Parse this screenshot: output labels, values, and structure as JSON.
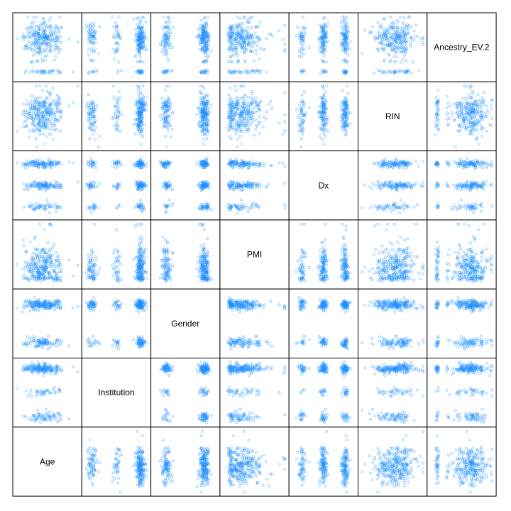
{
  "chart_data": {
    "type": "scatter",
    "variables": [
      "Age",
      "Institution",
      "Gender",
      "PMI",
      "Dx",
      "RIN",
      "Ancestry_EV.2"
    ],
    "layout": "lower-left-to-upper-right diagonal",
    "colors": {
      "point": "#1E90FF",
      "frame": "#000000",
      "background": "#FFFFFF"
    },
    "panels": [
      {
        "row_var": "Ancestry_EV.2",
        "col_var": "Age",
        "pattern": "three horizontal bands (upper dense, middle dense, lower sparse)"
      },
      {
        "row_var": "Ancestry_EV.2",
        "col_var": "Institution",
        "pattern": "three vertical columns with four point groups"
      },
      {
        "row_var": "Ancestry_EV.2",
        "col_var": "Gender",
        "pattern": "two vertical columns"
      },
      {
        "row_var": "Ancestry_EV.2",
        "col_var": "PMI",
        "pattern": "three horizontal bands, skewed left"
      },
      {
        "row_var": "Ancestry_EV.2",
        "col_var": "Dx",
        "pattern": "three vertical columns"
      },
      {
        "row_var": "Ancestry_EV.2",
        "col_var": "RIN",
        "pattern": "three horizontal bands, broad"
      },
      {
        "row_var": "RIN",
        "col_var": "Age",
        "pattern": "diffuse cloud"
      },
      {
        "row_var": "RIN",
        "col_var": "Institution",
        "pattern": "three vertical columns"
      },
      {
        "row_var": "RIN",
        "col_var": "Gender",
        "pattern": "two vertical columns"
      },
      {
        "row_var": "RIN",
        "col_var": "PMI",
        "pattern": "diffuse cloud, skewed left"
      },
      {
        "row_var": "RIN",
        "col_var": "Dx",
        "pattern": "three vertical columns"
      },
      {
        "row_var": "RIN",
        "col_var": "Ancestry_EV.2",
        "pattern": "vertical bands"
      },
      {
        "row_var": "Dx",
        "col_var": "Age",
        "pattern": "three horizontal bands"
      },
      {
        "row_var": "Dx",
        "col_var": "Institution",
        "pattern": "3x3 grid of clusters"
      },
      {
        "row_var": "Dx",
        "col_var": "Gender",
        "pattern": "2x3 grid of clusters"
      },
      {
        "row_var": "Dx",
        "col_var": "PMI",
        "pattern": "three horizontal bands, skewed left"
      },
      {
        "row_var": "Dx",
        "col_var": "RIN",
        "pattern": "three horizontal bands"
      },
      {
        "row_var": "Dx",
        "col_var": "Ancestry_EV.2",
        "pattern": "three horizontal bands with gaps"
      },
      {
        "row_var": "PMI",
        "col_var": "Age",
        "pattern": "diffuse cloud"
      },
      {
        "row_var": "PMI",
        "col_var": "Institution",
        "pattern": "three vertical columns"
      },
      {
        "row_var": "PMI",
        "col_var": "Gender",
        "pattern": "two vertical columns"
      },
      {
        "row_var": "PMI",
        "col_var": "Dx",
        "pattern": "three vertical columns"
      },
      {
        "row_var": "PMI",
        "col_var": "RIN",
        "pattern": "diffuse cloud"
      },
      {
        "row_var": "PMI",
        "col_var": "Ancestry_EV.2",
        "pattern": "vertical bands"
      },
      {
        "row_var": "Gender",
        "col_var": "Age",
        "pattern": "two horizontal bands"
      },
      {
        "row_var": "Gender",
        "col_var": "Institution",
        "pattern": "2x3 grid of clusters"
      },
      {
        "row_var": "Gender",
        "col_var": "PMI",
        "pattern": "two horizontal bands, skewed left"
      },
      {
        "row_var": "Gender",
        "col_var": "Dx",
        "pattern": "2x3 grid of clusters"
      },
      {
        "row_var": "Gender",
        "col_var": "RIN",
        "pattern": "two horizontal bands"
      },
      {
        "row_var": "Gender",
        "col_var": "Ancestry_EV.2",
        "pattern": "two horizontal bands with gaps"
      },
      {
        "row_var": "Institution",
        "col_var": "Age",
        "pattern": "three horizontal bands (age shifts by institution)"
      },
      {
        "row_var": "Institution",
        "col_var": "Gender",
        "pattern": "3x2 grid of clusters"
      },
      {
        "row_var": "Institution",
        "col_var": "PMI",
        "pattern": "three horizontal bands, skewed left"
      },
      {
        "row_var": "Institution",
        "col_var": "Dx",
        "pattern": "3x3 grid of clusters"
      },
      {
        "row_var": "Institution",
        "col_var": "RIN",
        "pattern": "three horizontal bands"
      },
      {
        "row_var": "Institution",
        "col_var": "Ancestry_EV.2",
        "pattern": "three horizontal bands with gaps"
      },
      {
        "row_var": "Age",
        "col_var": "Institution",
        "pattern": "three vertical columns"
      },
      {
        "row_var": "Age",
        "col_var": "Gender",
        "pattern": "two vertical columns"
      },
      {
        "row_var": "Age",
        "col_var": "PMI",
        "pattern": "diffuse cloud, skewed left"
      },
      {
        "row_var": "Age",
        "col_var": "Dx",
        "pattern": "three vertical columns"
      },
      {
        "row_var": "Age",
        "col_var": "RIN",
        "pattern": "diffuse cloud"
      },
      {
        "row_var": "Age",
        "col_var": "Ancestry_EV.2",
        "pattern": "vertical bands"
      }
    ],
    "title": "",
    "grid": false,
    "legend": "none"
  }
}
